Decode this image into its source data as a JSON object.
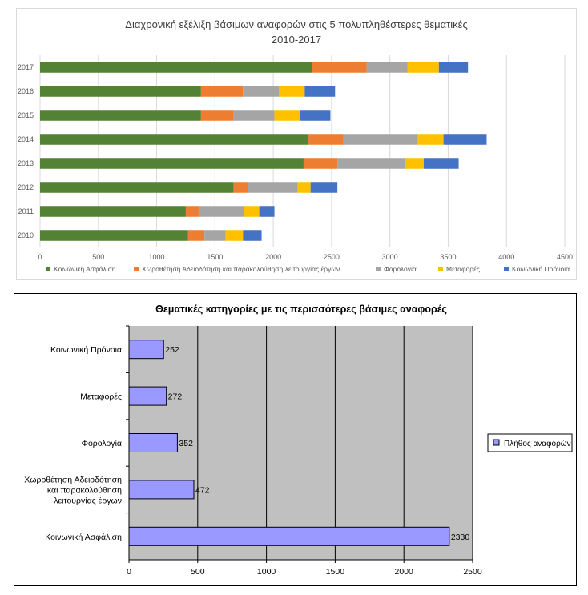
{
  "chart_data": [
    {
      "type": "bar",
      "orientation": "horizontal",
      "stacked": true,
      "title": "Διαχρονική εξέλιξη βάσιμων αναφορών στις  5 πολυπληθέστερες θεματικές",
      "subtitle": "2010-2017",
      "categories": [
        "2017",
        "2016",
        "2015",
        "2014",
        "2013",
        "2012",
        "2011",
        "2010"
      ],
      "xlim": [
        0,
        4500
      ],
      "xticks": [
        "0",
        "500",
        "1000",
        "1500",
        "2000",
        "2500",
        "3000",
        "3500",
        "4000",
        "4500"
      ],
      "grid": true,
      "legend_position": "bottom",
      "series": [
        {
          "name": "Κοινωνική Ασφάλιση",
          "color": "#548235",
          "values": [
            2330,
            1380,
            1380,
            2300,
            2260,
            1660,
            1250,
            1270
          ]
        },
        {
          "name": "Χωροθέτηση Αδειοδότηση και παρακολούθηση λειτουργίας έργων",
          "color": "#ed7d31",
          "values": [
            470,
            360,
            280,
            300,
            290,
            120,
            110,
            140
          ]
        },
        {
          "name": "Φορολογία",
          "color": "#a5a5a5",
          "values": [
            350,
            310,
            350,
            640,
            580,
            430,
            390,
            180
          ]
        },
        {
          "name": "Μεταφορές",
          "color": "#ffc000",
          "values": [
            270,
            220,
            220,
            220,
            160,
            110,
            130,
            150
          ]
        },
        {
          "name": "Κοινωνική Πρόνοια",
          "color": "#4472c4",
          "values": [
            250,
            260,
            260,
            370,
            300,
            230,
            130,
            160
          ]
        }
      ]
    },
    {
      "type": "bar",
      "orientation": "horizontal",
      "title": "Θεματικές κατηγορίες με τις περισσότερες βάσιμες αναφορές",
      "categories": [
        "Κοινωνική Πρόνοια",
        "Μεταφορές",
        "Φορολογία",
        "Χωροθέτηση Αδειοδότηση και παρακολούθηση λειτουργίας έργων",
        "Κοινωνική Ασφάλιση"
      ],
      "category_lines": [
        [
          "Κοινωνική Πρόνοια"
        ],
        [
          "Μεταφορές"
        ],
        [
          "Φορολογία"
        ],
        [
          "Χωροθέτηση Αδειοδότηση",
          "και παρακολούθηση",
          "λειτουργίας έργων"
        ],
        [
          "Κοινωνική Ασφάλιση"
        ]
      ],
      "values": [
        252,
        272,
        352,
        472,
        2330
      ],
      "value_labels": [
        "252",
        "272",
        "352",
        "472",
        "2330"
      ],
      "series_name": "Πλήθος αναφορών",
      "xlim": [
        0,
        2500
      ],
      "xticks": [
        "0",
        "500",
        "1000",
        "1500",
        "2000",
        "2500"
      ],
      "grid": true,
      "legend_position": "right",
      "colors": {
        "bar": "#9999ff",
        "plot_bg": "#c0c0c0"
      }
    }
  ]
}
